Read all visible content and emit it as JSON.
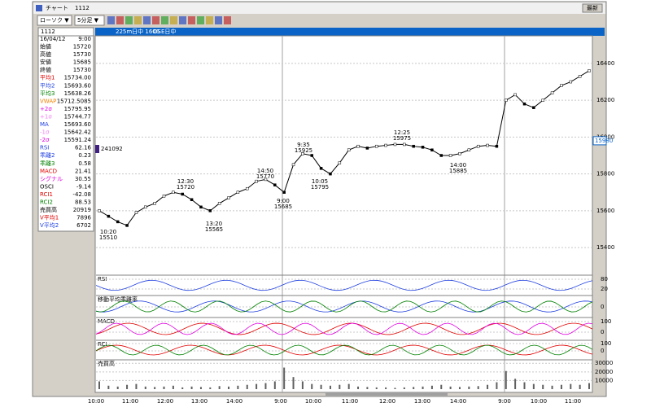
{
  "window": {
    "title": "チャート",
    "code": "1112",
    "button": "最新"
  },
  "toolbar": {
    "chart_type": "ローソク ▼",
    "interval": "5分足 ▼"
  },
  "header": {
    "code": "1112",
    "name": "225m日中 1606",
    "market": "OSE日中"
  },
  "info_panel": {
    "date": "16/04/12",
    "time": "9:00",
    "rows": [
      [
        "始値",
        "15720",
        "#000"
      ],
      [
        "高値",
        "15730",
        "#000"
      ],
      [
        "安値",
        "15685",
        "#000"
      ],
      [
        "終値",
        "15730",
        "#000"
      ],
      [
        "平均1",
        "15734.00",
        "#e00000"
      ],
      [
        "平均2",
        "15693.60",
        "#2040e0"
      ],
      [
        "平均3",
        "15638.26",
        "#008000"
      ],
      [
        "VWAP",
        "15712.5085",
        "#f08000"
      ],
      [
        "+2σ",
        "15795.95",
        "#e000e0"
      ],
      [
        "+1σ",
        "15744.77",
        "#f080f0"
      ],
      [
        "MA",
        "15693.60",
        "#2040e0"
      ],
      [
        "-1σ",
        "15642.42",
        "#f080f0"
      ],
      [
        "-2σ",
        "15591.24",
        "#e000e0"
      ],
      [
        "RSI",
        "62.16",
        "#2040e0"
      ],
      [
        "乖離2",
        "0.23",
        "#2040e0"
      ],
      [
        "乖離3",
        "0.58",
        "#008000"
      ],
      [
        "MACD",
        "21.41",
        "#e00000"
      ],
      [
        "シグナル",
        "30.55",
        "#e000e0"
      ],
      [
        "OSCI",
        "-9.14",
        "#000"
      ],
      [
        "RCI1",
        "-42.08",
        "#e00000"
      ],
      [
        "RCI2",
        "88.53",
        "#008000"
      ],
      [
        "売買高",
        "20919",
        "#000"
      ],
      [
        "V平均1",
        "7896",
        "#e00000"
      ],
      [
        "V平均2",
        "6702",
        "#2040e0"
      ]
    ]
  },
  "chart": {
    "type": "line",
    "price": {
      "values": [
        15600,
        15570,
        15540,
        15520,
        15590,
        15620,
        15640,
        15680,
        15700,
        15690,
        15660,
        15620,
        15600,
        15640,
        15670,
        15700,
        15720,
        15760,
        15770,
        15740,
        15700,
        15850,
        15910,
        15900,
        15830,
        15800,
        15860,
        15930,
        15950,
        15940,
        15950,
        15955,
        15960,
        15960,
        15950,
        15945,
        15930,
        15900,
        15900,
        15910,
        15930,
        15950,
        15955,
        15950,
        16200,
        16230,
        16180,
        16160,
        16200,
        16240,
        16280,
        16300,
        16330,
        16360
      ],
      "color": "#000",
      "ylim": [
        15250,
        16550
      ],
      "yticks": [
        15400,
        15600,
        15800,
        16000,
        16200,
        16400
      ],
      "current": 15980,
      "marker": "241092"
    },
    "annotations": [
      [
        "10:20",
        "15510"
      ],
      [
        "12:30",
        "15720"
      ],
      [
        "13:20",
        "15565"
      ],
      [
        "14:50",
        "15770"
      ],
      [
        "9:00",
        "15685"
      ],
      [
        "9:35",
        "15925"
      ],
      [
        "10:05",
        "15795"
      ],
      [
        "12:25",
        "15975"
      ],
      [
        "14:00",
        "15885"
      ]
    ],
    "x_labels": [
      "10:00",
      "11:00",
      "12:00",
      "13:00",
      "14:00",
      "9:00",
      "10:00",
      "11:00",
      "12:00",
      "13:00",
      "14:00",
      "9:00",
      "10:00",
      "11:00"
    ],
    "panels": [
      {
        "name": "RSI",
        "ticks": [
          80,
          20
        ]
      },
      {
        "name": "移動平均乖離率",
        "ticks": [
          0
        ]
      },
      {
        "name": "MACD",
        "ticks": [
          100,
          0
        ]
      },
      {
        "name": "RCI",
        "ticks": [
          100,
          0
        ]
      },
      {
        "name": "売買高"
      }
    ],
    "volume": {
      "values": [
        9000,
        4000,
        3000,
        5000,
        6000,
        3000,
        2500,
        3000,
        4000,
        2000,
        3000,
        2500,
        2000,
        3500,
        3000,
        4000,
        5000,
        6000,
        7000,
        9000,
        25000,
        14000,
        9000,
        6000,
        5000,
        4000,
        5000,
        6000,
        3000,
        2500,
        2000,
        2000,
        1500,
        2000,
        2500,
        3000,
        4000,
        5000,
        3000,
        2500,
        3000,
        3500,
        5000,
        8000,
        21000,
        12000,
        8000,
        6000,
        5000,
        4000,
        5000,
        6000,
        5000,
        7000
      ],
      "color": "#606060",
      "ylim": [
        0,
        34000
      ],
      "yticks": [
        10000,
        20000,
        30000
      ]
    }
  }
}
